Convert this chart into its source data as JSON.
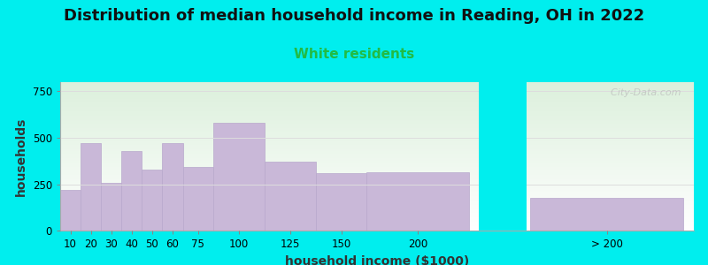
{
  "title": "Distribution of median household income in Reading, OH in 2022",
  "subtitle": "White residents",
  "xlabel": "household income ($1000)",
  "ylabel": "households",
  "background_color": "#00EEEE",
  "bar_color": "#c9b8d8",
  "bar_edge_color": "#b8a8cc",
  "title_fontsize": 13,
  "subtitle_fontsize": 11,
  "subtitle_color": "#22bb44",
  "ylim": [
    0,
    800
  ],
  "yticks": [
    0,
    250,
    500,
    750
  ],
  "watermark": "  City-Data.com",
  "bar_data": [
    [
      0,
      10,
      220
    ],
    [
      10,
      10,
      470
    ],
    [
      20,
      10,
      255
    ],
    [
      30,
      10,
      430
    ],
    [
      40,
      10,
      330
    ],
    [
      50,
      10,
      470
    ],
    [
      60,
      15,
      345
    ],
    [
      75,
      25,
      580
    ],
    [
      100,
      25,
      370
    ],
    [
      125,
      25,
      310
    ],
    [
      150,
      50,
      315
    ],
    [
      230,
      75,
      175
    ]
  ],
  "xtick_positions": [
    5,
    15,
    25,
    35,
    45,
    55,
    67.5,
    87.5,
    112.5,
    137.5,
    175,
    267.5
  ],
  "xtick_labels": [
    "10",
    "20",
    "30",
    "40",
    "50",
    "60",
    "75",
    "100",
    "125",
    "150",
    "200",
    "> 200"
  ],
  "xlim": [
    0,
    310
  ],
  "gap_start": 205,
  "gap_end": 228
}
